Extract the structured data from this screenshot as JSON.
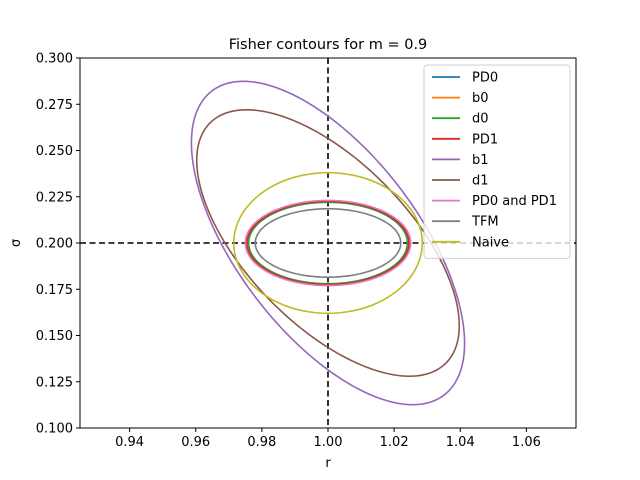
{
  "chart_data": {
    "type": "line",
    "title": "Fisher contours for m = 0.9",
    "xlabel": "r",
    "ylabel": "σ",
    "xlim": [
      0.925,
      1.075
    ],
    "ylim": [
      0.1,
      0.3
    ],
    "xticks": [
      0.94,
      0.96,
      0.98,
      1.0,
      1.02,
      1.04,
      1.06
    ],
    "xtick_labels": [
      "0.94",
      "0.96",
      "0.98",
      "1.00",
      "1.02",
      "1.04",
      "1.06"
    ],
    "yticks": [
      0.1,
      0.125,
      0.15,
      0.175,
      0.2,
      0.225,
      0.25,
      0.275,
      0.3
    ],
    "ytick_labels": [
      "0.100",
      "0.125",
      "0.150",
      "0.175",
      "0.200",
      "0.225",
      "0.250",
      "0.275",
      "0.300"
    ],
    "grid": false,
    "legend_position": "upper right",
    "reference_lines": [
      {
        "orientation": "vertical",
        "value": 1.0,
        "style": "dashed",
        "color": "#000000"
      },
      {
        "orientation": "horizontal",
        "value": 0.2,
        "style": "dashed",
        "color": "#000000"
      }
    ],
    "center": {
      "r": 1.0,
      "sigma": 0.2
    },
    "series": [
      {
        "name": "PD0",
        "color": "#1f77b4",
        "shape": "ellipse",
        "center": [
          1.0,
          0.2
        ],
        "r_extent": [
          0.9755,
          1.0245
        ],
        "sigma_extent": [
          0.1775,
          0.2225
        ],
        "tilt": 0
      },
      {
        "name": "b0",
        "color": "#ff7f0e",
        "shape": "ellipse",
        "center": [
          1.0,
          0.2
        ],
        "r_extent": [
          0.9755,
          1.0245
        ],
        "sigma_extent": [
          0.1775,
          0.2225
        ],
        "tilt": 0
      },
      {
        "name": "d0",
        "color": "#2ca02c",
        "shape": "ellipse",
        "center": [
          1.0,
          0.2
        ],
        "r_extent": [
          0.976,
          1.024
        ],
        "sigma_extent": [
          0.178,
          0.222
        ],
        "tilt": 0
      },
      {
        "name": "PD1",
        "color": "#d62728",
        "shape": "ellipse",
        "center": [
          1.0,
          0.2
        ],
        "r_extent": [
          0.9755,
          1.0245
        ],
        "sigma_extent": [
          0.1775,
          0.2225
        ],
        "tilt": 0
      },
      {
        "name": "b1",
        "color": "#9467bd",
        "shape": "tilted-ellipse",
        "center": [
          1.0,
          0.2
        ],
        "r_extent": [
          0.9587,
          1.0413
        ],
        "sigma_extent": [
          0.1126,
          0.2874
        ],
        "tilt": -1
      },
      {
        "name": "d1",
        "color": "#8c564b",
        "shape": "tilted-ellipse",
        "center": [
          1.0,
          0.2
        ],
        "r_extent": [
          0.9603,
          1.0397
        ],
        "sigma_extent": [
          0.128,
          0.272
        ],
        "tilt": -1
      },
      {
        "name": "PD0 and PD1",
        "color": "#e377c2",
        "shape": "ellipse",
        "center": [
          1.0,
          0.2
        ],
        "r_extent": [
          0.975,
          1.025
        ],
        "sigma_extent": [
          0.177,
          0.223
        ],
        "tilt": 0
      },
      {
        "name": "TFM",
        "color": "#7f7f7f",
        "shape": "ellipse",
        "center": [
          1.0,
          0.2
        ],
        "r_extent": [
          0.978,
          1.022
        ],
        "sigma_extent": [
          0.1815,
          0.2185
        ],
        "tilt": 0
      },
      {
        "name": "Naive",
        "color": "#bcbd22",
        "shape": "ellipse",
        "center": [
          1.0,
          0.2
        ],
        "r_extent": [
          0.9715,
          1.0285
        ],
        "sigma_extent": [
          0.162,
          0.238
        ],
        "tilt": 0
      }
    ]
  }
}
